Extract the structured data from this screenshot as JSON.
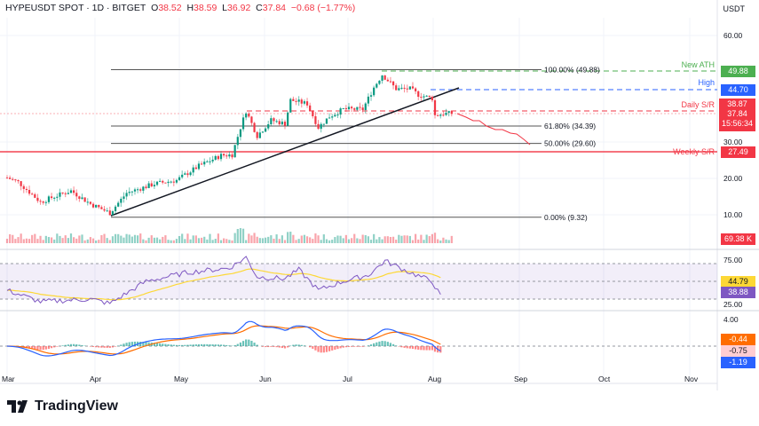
{
  "header": {
    "symbol": "HYPEUSDT SPOT · 1D · BITGET",
    "o_label": "O",
    "o": "38.52",
    "h_label": "H",
    "h": "38.59",
    "l_label": "L",
    "l": "36.92",
    "c_label": "C",
    "c": "37.84",
    "change": "−0.68 (−1.77%)"
  },
  "currency": "USDT",
  "price_axis": [
    "60.00",
    "30.00",
    "20.00",
    "10.00"
  ],
  "levels": {
    "ath": {
      "label": "New ATH",
      "value": "49.88",
      "color": "#4caf50"
    },
    "high": {
      "label": "High",
      "value": "44.70",
      "color": "#2962ff"
    },
    "daily": {
      "label": "Daily S/R",
      "value": "38.87",
      "color": "#f23645"
    },
    "last": {
      "value": "37.84",
      "countdown": "15:56:34",
      "color": "#f23645"
    },
    "weekly": {
      "label": "Weekly S/R",
      "value": "27.49",
      "color": "#f23645"
    }
  },
  "fib": [
    {
      "label": "100.00% (49.88)",
      "price": 49.88
    },
    {
      "label": "61.80% (34.39)",
      "price": 34.39
    },
    {
      "label": "50.00% (29.60)",
      "price": 29.6
    },
    {
      "label": "0.00% (9.32)",
      "price": 9.32
    }
  ],
  "volume": {
    "value": "69.38 K"
  },
  "rsi": {
    "axis": [
      "75.00",
      "25.00"
    ],
    "ma": "44.79",
    "rsi": "38.88"
  },
  "macd": {
    "axis": "4.00",
    "hist": "-0.44",
    "signal": "-0.75",
    "macd": "-1.19"
  },
  "time_axis": [
    "Mar",
    "Apr",
    "May",
    "Jun",
    "Jul",
    "Aug",
    "Sep",
    "Oct",
    "Nov"
  ],
  "brand": "TradingView",
  "chart_data": {
    "type": "candlestick",
    "x_unit": "days since Mar 1",
    "anchors": [
      [
        0,
        20.2
      ],
      [
        4,
        19
      ],
      [
        12,
        13.5
      ],
      [
        17,
        15
      ],
      [
        23,
        16.6
      ],
      [
        30,
        13
      ],
      [
        37,
        10.5
      ],
      [
        43,
        16
      ],
      [
        53,
        18.5
      ],
      [
        61,
        19.5
      ],
      [
        69,
        23.4
      ],
      [
        77,
        26.3
      ],
      [
        81,
        26.5
      ],
      [
        84,
        34
      ],
      [
        86,
        38.5
      ],
      [
        90,
        31.7
      ],
      [
        95,
        36
      ],
      [
        100,
        35
      ],
      [
        102,
        41.5
      ],
      [
        108,
        40.5
      ],
      [
        112,
        34
      ],
      [
        116,
        37
      ],
      [
        121,
        39
      ],
      [
        128,
        39
      ],
      [
        132,
        45
      ],
      [
        135,
        48.5
      ],
      [
        140,
        44.6
      ],
      [
        145,
        44.6
      ],
      [
        148,
        43
      ],
      [
        153,
        42
      ],
      [
        154,
        37.3
      ],
      [
        157,
        37.8
      ],
      [
        160,
        37.84
      ]
    ],
    "rsi_anchors": [
      [
        0,
        45
      ],
      [
        12,
        32
      ],
      [
        30,
        35
      ],
      [
        37,
        30
      ],
      [
        50,
        55
      ],
      [
        65,
        65
      ],
      [
        80,
        70
      ],
      [
        86,
        82
      ],
      [
        90,
        60
      ],
      [
        100,
        58
      ],
      [
        105,
        68
      ],
      [
        112,
        45
      ],
      [
        121,
        55
      ],
      [
        130,
        62
      ],
      [
        136,
        78
      ],
      [
        145,
        65
      ],
      [
        153,
        55
      ],
      [
        156,
        38
      ],
      [
        160,
        38.88
      ]
    ],
    "ylim": [
      0,
      65
    ]
  }
}
